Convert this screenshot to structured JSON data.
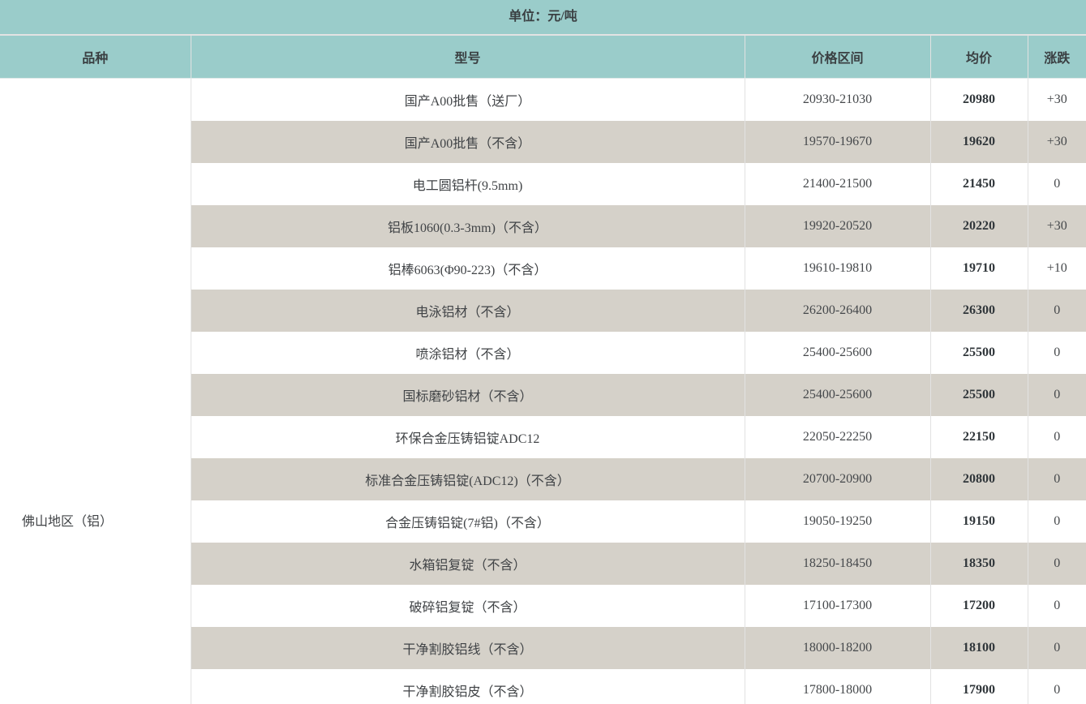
{
  "unit_label": "单位：元/吨",
  "columns": [
    "品种",
    "型号",
    "价格区间",
    "均价",
    "涨跌"
  ],
  "region": {
    "label": "佛山地区（铝）"
  },
  "rows": [
    {
      "model": "国产A00批售（送厂）",
      "range": "20930-21030",
      "avg": "20980",
      "change": "+30"
    },
    {
      "model": "国产A00批售（不含）",
      "range": "19570-19670",
      "avg": "19620",
      "change": "+30"
    },
    {
      "model": "电工圆铝杆(9.5mm)",
      "range": "21400-21500",
      "avg": "21450",
      "change": "0"
    },
    {
      "model": "铝板1060(0.3-3mm)（不含）",
      "range": "19920-20520",
      "avg": "20220",
      "change": "+30"
    },
    {
      "model": "铝棒6063(Φ90-223)（不含）",
      "range": "19610-19810",
      "avg": "19710",
      "change": "+10"
    },
    {
      "model": "电泳铝材（不含）",
      "range": "26200-26400",
      "avg": "26300",
      "change": "0"
    },
    {
      "model": "喷涂铝材（不含）",
      "range": "25400-25600",
      "avg": "25500",
      "change": "0"
    },
    {
      "model": "国标磨砂铝材（不含）",
      "range": "25400-25600",
      "avg": "25500",
      "change": "0"
    },
    {
      "model": "环保合金压铸铝锭ADC12",
      "range": "22050-22250",
      "avg": "22150",
      "change": "0"
    },
    {
      "model": "标准合金压铸铝锭(ADC12)（不含）",
      "range": "20700-20900",
      "avg": "20800",
      "change": "0"
    },
    {
      "model": "合金压铸铝锭(7#铝)（不含）",
      "range": "19050-19250",
      "avg": "19150",
      "change": "0"
    },
    {
      "model": "水箱铝复锭（不含）",
      "range": "18250-18450",
      "avg": "18350",
      "change": "0"
    },
    {
      "model": "破碎铝复锭（不含）",
      "range": "17100-17300",
      "avg": "17200",
      "change": "0"
    },
    {
      "model": "干净割胶铝线（不含）",
      "range": "18000-18200",
      "avg": "18100",
      "change": "0"
    },
    {
      "model": "干净割胶铝皮（不含）",
      "range": "17800-18000",
      "avg": "17900",
      "change": "0"
    }
  ],
  "colors": {
    "header_teal": "#9accca",
    "stripe_row": "#d5d1c9",
    "border": "#e2e2e2",
    "text": "#404346",
    "avg_text": "#30363a"
  }
}
